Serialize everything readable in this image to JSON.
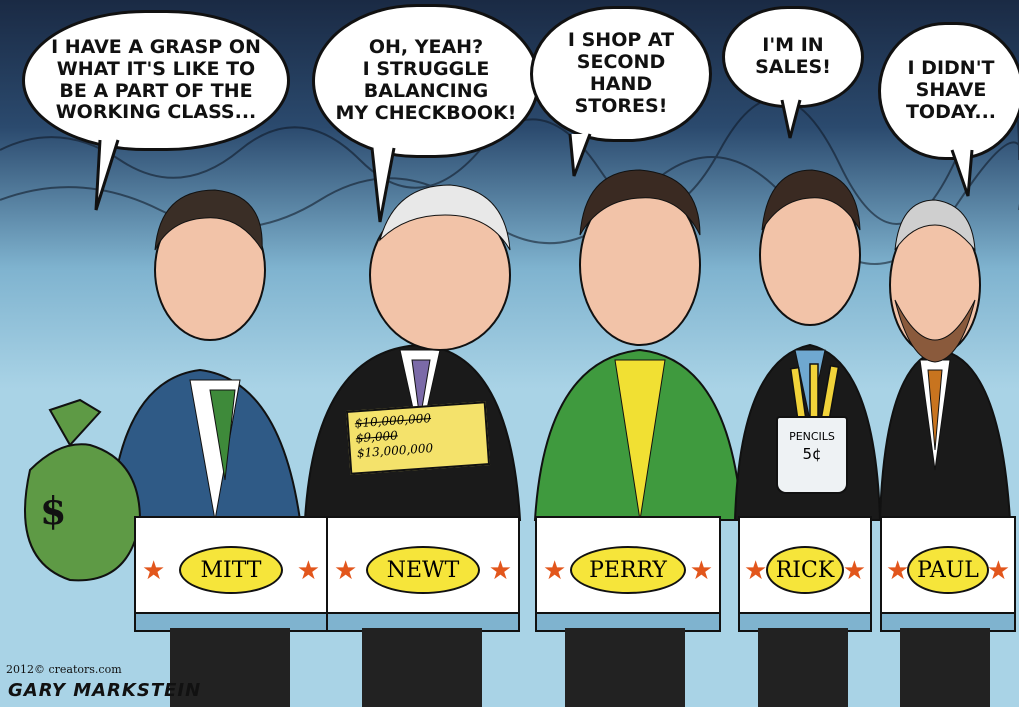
{
  "bubbles": [
    {
      "text": "I have a grasp on\nwhat it's like to\nbe a part of the\nworking class..."
    },
    {
      "text": "Oh, yeah?\nI struggle\nbalancing\nmy checkbook!"
    },
    {
      "text": "I shop at\nsecond\nhand\nstores!"
    },
    {
      "text": "I'm in\nsales!"
    },
    {
      "text": "I didn't\nshave\ntoday..."
    }
  ],
  "podiums": [
    {
      "name": "MITT"
    },
    {
      "name": "NEWT"
    },
    {
      "name": "PERRY"
    },
    {
      "name": "RICK"
    },
    {
      "name": "PAUL"
    }
  ],
  "check": {
    "line1": "$10,000,000",
    "line2": "$9,000",
    "line3": "$13,000,000"
  },
  "jar": {
    "label": "PENCILS",
    "price": "5¢"
  },
  "moneybag": {
    "symbol": "$"
  },
  "credit": {
    "text": "2012© creators.com",
    "artist": "GARY MARKSTEIN"
  },
  "colors": {
    "podium_name_fill": "#f6e53a",
    "star": "#e2561c",
    "sky": "#a9d3e6"
  }
}
